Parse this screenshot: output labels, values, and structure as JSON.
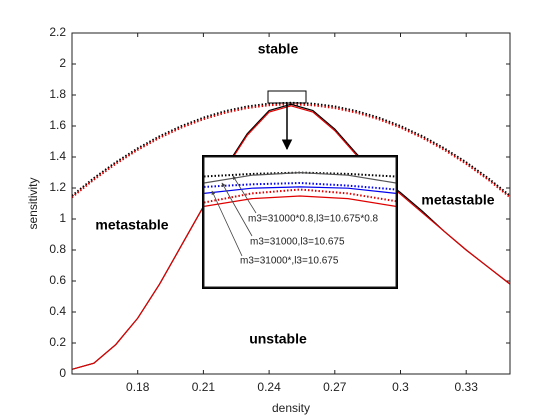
{
  "chart_data": [
    {
      "type": "line",
      "xlabel": "density",
      "ylabel": "sensitivity",
      "annotations": [
        "stable",
        "metastable",
        "metastable",
        "unstable"
      ],
      "x": [
        0.15,
        0.16,
        0.17,
        0.18,
        0.19,
        0.2,
        0.21,
        0.22,
        0.23,
        0.24,
        0.25,
        0.26,
        0.27,
        0.28,
        0.29,
        0.3,
        0.31,
        0.32,
        0.33,
        0.34,
        0.35
      ],
      "series": [
        {
          "color": "#000000",
          "style": "dotted",
          "values": [
            1.15,
            1.264,
            1.366,
            1.456,
            1.534,
            1.6,
            1.654,
            1.696,
            1.726,
            1.744,
            1.75,
            1.744,
            1.726,
            1.696,
            1.654,
            1.6,
            1.534,
            1.456,
            1.366,
            1.264,
            1.15
          ]
        },
        {
          "color": "#e00000",
          "style": "dotted",
          "values": [
            1.14,
            1.254,
            1.356,
            1.446,
            1.524,
            1.59,
            1.644,
            1.686,
            1.716,
            1.734,
            1.74,
            1.734,
            1.716,
            1.686,
            1.644,
            1.59,
            1.524,
            1.446,
            1.356,
            1.254,
            1.14
          ]
        },
        {
          "color": "#000000",
          "style": "solid",
          "values": [
            0.03,
            0.07,
            0.19,
            0.36,
            0.58,
            0.83,
            1.08,
            1.33,
            1.55,
            1.7,
            1.74,
            1.7,
            1.58,
            1.42,
            1.28,
            1.17,
            1.05,
            0.92,
            0.8,
            0.69,
            0.58
          ]
        },
        {
          "color": "#e00000",
          "style": "solid",
          "values": [
            0.03,
            0.07,
            0.19,
            0.36,
            0.58,
            0.83,
            1.08,
            1.32,
            1.54,
            1.69,
            1.73,
            1.69,
            1.57,
            1.41,
            1.27,
            1.16,
            1.04,
            0.92,
            0.8,
            0.69,
            0.58
          ]
        }
      ],
      "xlim": [
        0.15,
        0.35
      ],
      "xticks": [
        0.18,
        0.21,
        0.24,
        0.27,
        0.3,
        0.33
      ],
      "ylim": [
        0,
        2.2
      ],
      "yticks": [
        0,
        0.2,
        0.4,
        0.6,
        0.8,
        1,
        1.2,
        1.4,
        1.6,
        1.8,
        2,
        2.2
      ]
    },
    {
      "type": "line",
      "annotations": [
        "m3=31000*0.8,l3=10.675*0.8",
        "m3=31000,l3=10.675",
        "m3=31000*,l3=10.675"
      ],
      "x": [
        0.24,
        0.245,
        0.25,
        0.255,
        0.26
      ],
      "series": [
        {
          "color": "#000000",
          "style": "dotted",
          "values": [
            1.785,
            1.787,
            1.788,
            1.787,
            1.785
          ]
        },
        {
          "color": "#555555",
          "style": "solid",
          "values": [
            1.78,
            1.786,
            1.788,
            1.786,
            1.78
          ]
        },
        {
          "color": "#0000ee",
          "style": "dotted",
          "values": [
            1.777,
            1.779,
            1.78,
            1.778,
            1.775
          ]
        },
        {
          "color": "#0000ee",
          "style": "solid",
          "values": [
            1.772,
            1.776,
            1.777,
            1.776,
            1.772
          ]
        },
        {
          "color": "#e00000",
          "style": "dotted",
          "values": [
            1.765,
            1.772,
            1.775,
            1.772,
            1.766
          ]
        },
        {
          "color": "#e00000",
          "style": "solid",
          "values": [
            1.762,
            1.768,
            1.77,
            1.768,
            1.762
          ]
        }
      ],
      "xlim": [
        0.24,
        0.26
      ],
      "ylim": [
        1.7,
        1.8
      ]
    }
  ]
}
